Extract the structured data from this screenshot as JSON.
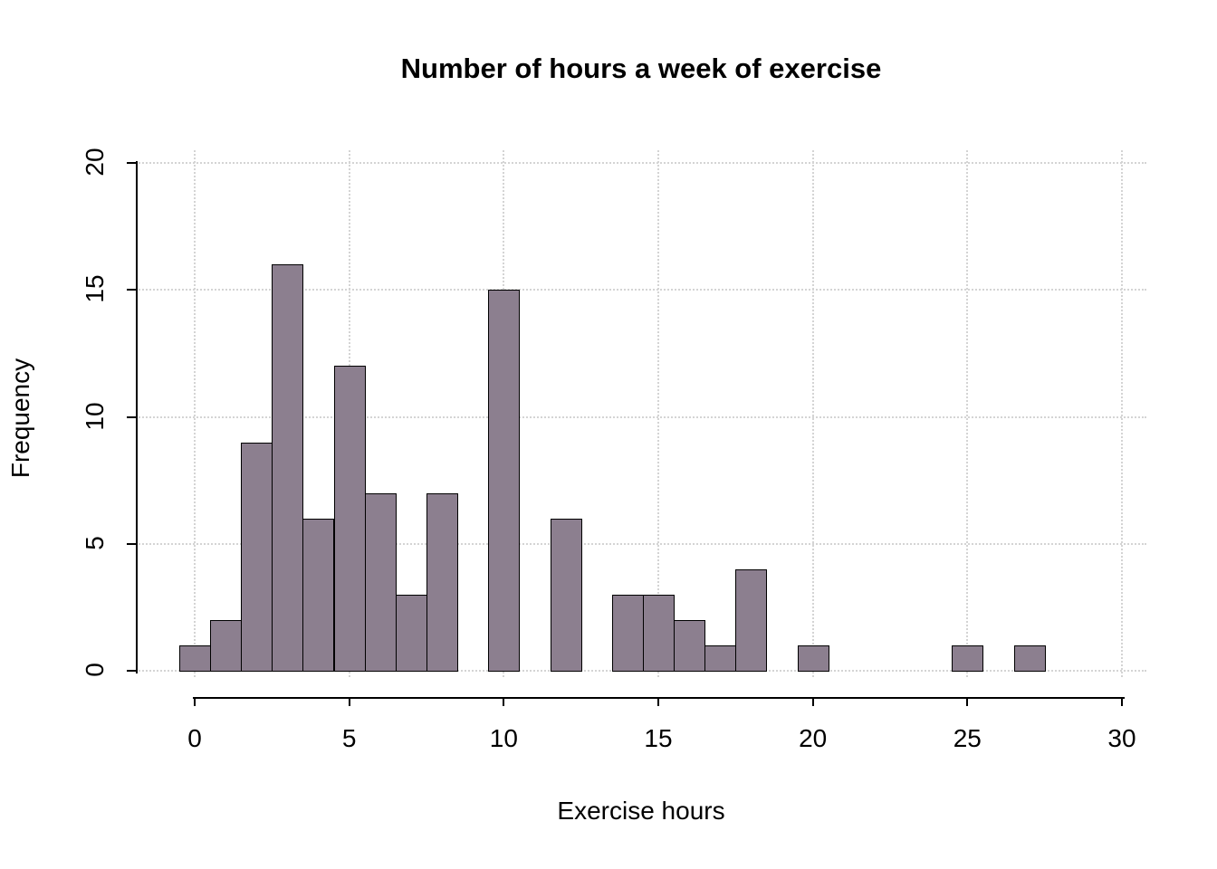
{
  "chart_data": {
    "type": "bar",
    "subtype": "histogram",
    "title": "Number of hours a week of exercise",
    "xlabel": "Exercise hours",
    "ylabel": "Frequency",
    "bin_width": 1,
    "bin_centers": [
      0,
      1,
      2,
      3,
      4,
      5,
      6,
      7,
      8,
      9,
      10,
      11,
      12,
      13,
      14,
      15,
      16,
      17,
      18,
      19,
      20,
      21,
      22,
      23,
      24,
      25,
      26,
      27,
      28,
      29
    ],
    "values": [
      1,
      2,
      9,
      16,
      6,
      12,
      7,
      3,
      7,
      0,
      15,
      0,
      6,
      0,
      3,
      3,
      2,
      1,
      4,
      0,
      1,
      0,
      0,
      0,
      0,
      1,
      0,
      1,
      0,
      0
    ],
    "x_ticks": [
      0,
      5,
      10,
      15,
      20,
      25,
      30
    ],
    "y_ticks": [
      0,
      5,
      10,
      15,
      20
    ],
    "xlim": [
      -0.5,
      30
    ],
    "ylim": [
      0,
      20
    ],
    "grid": "dotted-major-both",
    "legend": "none",
    "bar_fill": "#8c7f8f",
    "bar_border": "#000000",
    "grid_color": "#d4d4d4",
    "axis_color": "#000000",
    "background": "#ffffff"
  }
}
